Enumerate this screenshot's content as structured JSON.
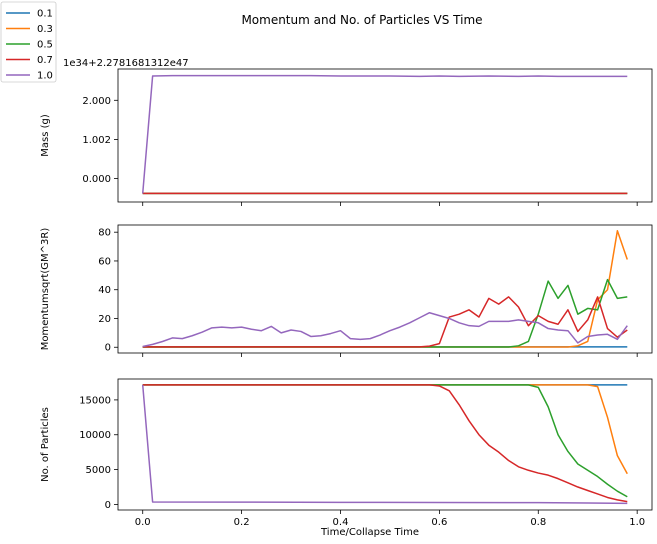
{
  "chart_data": {
    "type": "line",
    "title": "Momentum and No. of Particles VS Time",
    "xlabel": "Time/Collapse Time",
    "x_ticks": [
      "0.0",
      "0.2",
      "0.4",
      "0.6",
      "0.8",
      "1.0"
    ],
    "xlim": [
      -0.05,
      1.03
    ],
    "legend": {
      "placement": "outside top-left",
      "entries": [
        {
          "name": "0.1",
          "color": "#1f77b4"
        },
        {
          "name": "0.3",
          "color": "#ff7f0e"
        },
        {
          "name": "0.5",
          "color": "#2ca02c"
        },
        {
          "name": "0.7",
          "color": "#d62728"
        },
        {
          "name": "1.0",
          "color": "#9467bd"
        }
      ]
    },
    "panels": [
      {
        "ylabel": "Mass (g)",
        "offset_text": "1e34+2.2781681312e47",
        "ylim": [
          -0.0006,
          0.0028
        ],
        "y_ticks": [
          {
            "v": 0.0,
            "label": "0.000"
          },
          {
            "v": 0.001,
            "label": "1.002"
          },
          {
            "v": 0.002,
            "label": "2.000"
          }
        ],
        "series": [
          {
            "name": "0.1",
            "color": "#1f77b4",
            "x": [
              0.0,
              0.98
            ],
            "y": [
              -0.00038,
              -0.00038
            ]
          },
          {
            "name": "0.3",
            "color": "#ff7f0e",
            "x": [
              0.0,
              0.98
            ],
            "y": [
              -0.00038,
              -0.00038
            ]
          },
          {
            "name": "0.5",
            "color": "#2ca02c",
            "x": [
              0.0,
              0.98
            ],
            "y": [
              -0.00038,
              -0.00038
            ]
          },
          {
            "name": "0.7",
            "color": "#d62728",
            "x": [
              0.0,
              0.98
            ],
            "y": [
              -0.00038,
              -0.00038
            ]
          },
          {
            "name": "1.0",
            "color": "#9467bd",
            "x": [
              0.0,
              0.02,
              0.06,
              0.1,
              0.14,
              0.2,
              0.26,
              0.3,
              0.34,
              0.4,
              0.46,
              0.5,
              0.56,
              0.6,
              0.64,
              0.7,
              0.76,
              0.8,
              0.84,
              0.88,
              0.92,
              0.96,
              0.98
            ],
            "y": [
              -0.00038,
              0.00262,
              0.00263,
              0.00263,
              0.00263,
              0.00263,
              0.00263,
              0.00263,
              0.00263,
              0.00262,
              0.00262,
              0.00262,
              0.00261,
              0.00262,
              0.00261,
              0.00262,
              0.00261,
              0.00262,
              0.00261,
              0.00261,
              0.00261,
              0.00261,
              0.00261
            ]
          }
        ]
      },
      {
        "ylabel": "Momentumsqrt(GM^3R)",
        "offset_text": "",
        "ylim": [
          -4,
          85
        ],
        "y_ticks": [
          {
            "v": 0,
            "label": "0"
          },
          {
            "v": 20,
            "label": "20"
          },
          {
            "v": 40,
            "label": "40"
          },
          {
            "v": 60,
            "label": "60"
          },
          {
            "v": 80,
            "label": "80"
          }
        ],
        "series": [
          {
            "name": "0.1",
            "color": "#1f77b4",
            "x": [
              0.0,
              0.5,
              0.9,
              0.98
            ],
            "y": [
              0.3,
              0.3,
              0.3,
              0.3
            ]
          },
          {
            "name": "0.3",
            "color": "#ff7f0e",
            "x": [
              0.0,
              0.86,
              0.88,
              0.9,
              0.92,
              0.94,
              0.96,
              0.98
            ],
            "y": [
              0.2,
              0.2,
              1.0,
              4.0,
              33.0,
              40.0,
              81.0,
              61.0
            ]
          },
          {
            "name": "0.5",
            "color": "#2ca02c",
            "x": [
              0.0,
              0.74,
              0.76,
              0.78,
              0.8,
              0.82,
              0.84,
              0.86,
              0.88,
              0.9,
              0.92,
              0.94,
              0.96,
              0.98
            ],
            "y": [
              0.2,
              0.2,
              1.0,
              4.0,
              23.0,
              46.0,
              34.0,
              43.0,
              23.0,
              27.0,
              26.0,
              47.0,
              34.0,
              35.0
            ]
          },
          {
            "name": "0.7",
            "color": "#d62728",
            "x": [
              0.0,
              0.56,
              0.58,
              0.6,
              0.62,
              0.64,
              0.66,
              0.68,
              0.7,
              0.72,
              0.74,
              0.76,
              0.78,
              0.8,
              0.82,
              0.84,
              0.86,
              0.88,
              0.9,
              0.92,
              0.94,
              0.96,
              0.98
            ],
            "y": [
              0.3,
              0.3,
              0.8,
              2.5,
              21.0,
              23.0,
              26.0,
              21.0,
              34.0,
              30.0,
              35.0,
              28.0,
              15.0,
              22.0,
              18.0,
              16.0,
              26.0,
              11.0,
              19.0,
              35.0,
              13.0,
              7.0,
              12.0
            ]
          },
          {
            "name": "1.0",
            "color": "#9467bd",
            "x": [
              0.0,
              0.02,
              0.04,
              0.06,
              0.08,
              0.1,
              0.12,
              0.14,
              0.16,
              0.18,
              0.2,
              0.22,
              0.24,
              0.26,
              0.28,
              0.3,
              0.32,
              0.34,
              0.36,
              0.38,
              0.4,
              0.42,
              0.44,
              0.46,
              0.48,
              0.5,
              0.52,
              0.54,
              0.56,
              0.58,
              0.6,
              0.62,
              0.64,
              0.66,
              0.68,
              0.7,
              0.72,
              0.74,
              0.76,
              0.78,
              0.8,
              0.82,
              0.84,
              0.86,
              0.88,
              0.9,
              0.92,
              0.94,
              0.96,
              0.98
            ],
            "y": [
              0.5,
              2.0,
              4.0,
              6.5,
              6.0,
              8.0,
              10.5,
              13.5,
              14.0,
              13.5,
              14.0,
              12.5,
              11.5,
              14.5,
              10.0,
              12.0,
              11.0,
              7.5,
              8.0,
              9.5,
              11.5,
              6.0,
              5.5,
              6.0,
              8.5,
              11.5,
              14.0,
              17.0,
              20.5,
              24.0,
              22.0,
              20.0,
              17.0,
              15.0,
              14.5,
              18.0,
              18.0,
              18.0,
              19.0,
              18.0,
              17.0,
              13.0,
              12.0,
              11.5,
              3.0,
              7.5,
              8.5,
              9.0,
              5.5,
              15.0
            ]
          }
        ]
      },
      {
        "ylabel": "No. of Particles",
        "offset_text": "",
        "ylim": [
          -800,
          18000
        ],
        "y_ticks": [
          {
            "v": 0,
            "label": "0"
          },
          {
            "v": 5000,
            "label": "5000"
          },
          {
            "v": 10000,
            "label": "10000"
          },
          {
            "v": 15000,
            "label": "15000"
          }
        ],
        "series": [
          {
            "name": "0.1",
            "color": "#1f77b4",
            "x": [
              0.0,
              0.5,
              0.98
            ],
            "y": [
              17150,
              17150,
              17150
            ]
          },
          {
            "name": "0.3",
            "color": "#ff7f0e",
            "x": [
              0.0,
              0.9,
              0.92,
              0.94,
              0.96,
              0.98
            ],
            "y": [
              17150,
              17150,
              16900,
              12500,
              7000,
              4400
            ]
          },
          {
            "name": "0.5",
            "color": "#2ca02c",
            "x": [
              0.0,
              0.78,
              0.8,
              0.82,
              0.84,
              0.86,
              0.88,
              0.9,
              0.92,
              0.94,
              0.96,
              0.98
            ],
            "y": [
              17150,
              17150,
              16800,
              14000,
              10000,
              7600,
              5800,
              4900,
              4000,
              2900,
              1900,
              1100
            ]
          },
          {
            "name": "0.7",
            "color": "#d62728",
            "x": [
              0.0,
              0.58,
              0.6,
              0.62,
              0.64,
              0.66,
              0.68,
              0.7,
              0.72,
              0.74,
              0.76,
              0.78,
              0.8,
              0.82,
              0.84,
              0.86,
              0.88,
              0.9,
              0.92,
              0.94,
              0.96,
              0.98
            ],
            "y": [
              17150,
              17150,
              17000,
              16300,
              14300,
              12000,
              10000,
              8500,
              7500,
              6300,
              5400,
              4900,
              4500,
              4200,
              3700,
              3100,
              2500,
              2000,
              1500,
              1000,
              650,
              400
            ]
          },
          {
            "name": "1.0",
            "color": "#9467bd",
            "x": [
              0.0,
              0.02,
              0.2,
              0.4,
              0.6,
              0.8,
              0.9,
              0.98
            ],
            "y": [
              17150,
              350,
              330,
              300,
              280,
              250,
              200,
              150
            ]
          }
        ]
      }
    ]
  }
}
